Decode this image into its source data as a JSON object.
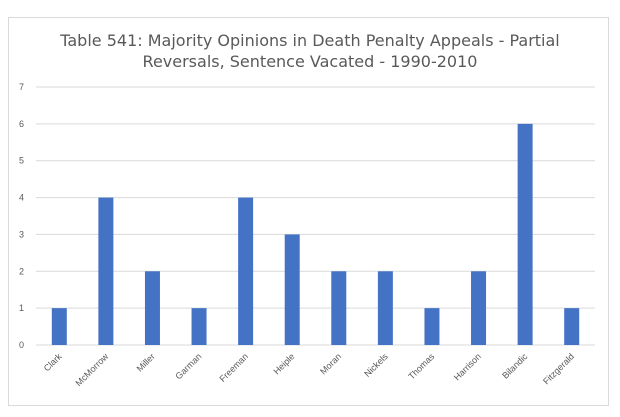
{
  "chart_data": {
    "type": "bar",
    "title_lines": [
      "Table 541: Majority Opinions in Death Penalty Appeals - Partial",
      "Reversals, Sentence Vacated - 1990-2010"
    ],
    "xlabel": "",
    "ylabel": "",
    "categories": [
      "Clark",
      "McMorrow",
      "Miller",
      "Garman",
      "Freeman",
      "Heiple",
      "Moran",
      "Nickels",
      "Thomas",
      "Harrison",
      "Bilandic",
      "Fitzgerald"
    ],
    "values": [
      1,
      4,
      2,
      1,
      4,
      3,
      2,
      2,
      1,
      2,
      6,
      1
    ],
    "ylim": [
      0,
      7
    ],
    "yticks": [
      "0",
      "1",
      "2",
      "3",
      "4",
      "5",
      "6",
      "7"
    ],
    "grid": true,
    "legend": "none",
    "bar_color": "#4472c4",
    "grid_color": "#d9d9d9"
  }
}
